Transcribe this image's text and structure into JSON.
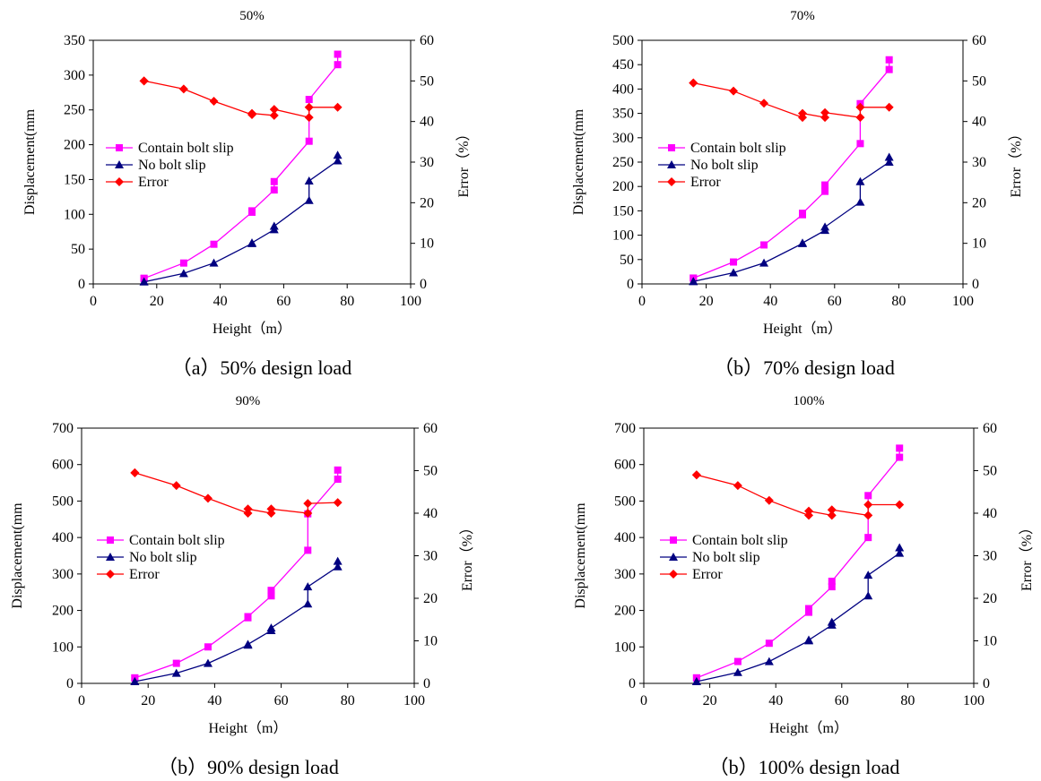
{
  "chart_data": [
    {
      "type": "line",
      "title": "50%",
      "caption": "（a）50% design load",
      "xlabel": "Height（m）",
      "ylabel": "Displacement(mm",
      "y2label": "Error（%）",
      "xlim": [
        0,
        100
      ],
      "xticks": [
        0,
        20,
        40,
        60,
        80,
        100
      ],
      "ylim": [
        0,
        350
      ],
      "yticks": [
        0,
        50,
        100,
        150,
        200,
        250,
        300,
        350
      ],
      "y2lim": [
        0,
        60
      ],
      "y2ticks": [
        0,
        10,
        20,
        30,
        40,
        50,
        60
      ],
      "legend": [
        "Contain bolt slip",
        "No bolt slip",
        "Error"
      ],
      "series": [
        {
          "name": "Contain bolt slip",
          "color": "#ff00ff",
          "marker": "square",
          "axis": "left",
          "x": [
            16,
            16,
            28.5,
            38,
            50,
            50,
            57,
            57,
            68,
            68,
            77,
            77
          ],
          "y": [
            8,
            8,
            30,
            57,
            103,
            105,
            135,
            147,
            205,
            265,
            315,
            330
          ]
        },
        {
          "name": "No bolt slip",
          "color": "#000080",
          "marker": "triangle",
          "axis": "left",
          "x": [
            16,
            16,
            28.5,
            38,
            50,
            50,
            57,
            57,
            68,
            68,
            77,
            77
          ],
          "y": [
            3,
            3,
            15,
            30,
            58,
            59,
            78,
            83,
            120,
            148,
            177,
            185
          ]
        },
        {
          "name": "Error",
          "color": "#ff0000",
          "marker": "diamond",
          "axis": "right",
          "x": [
            16,
            16,
            28.5,
            38,
            50,
            50,
            57,
            57,
            68,
            68,
            77
          ],
          "y": [
            50,
            50,
            48,
            45,
            41.7,
            42,
            41.5,
            43,
            41,
            43.5,
            43.5
          ]
        }
      ]
    },
    {
      "type": "line",
      "title": "70%",
      "caption": "（b）70% design load",
      "xlabel": "Height（m）",
      "ylabel": "Displacement(mm",
      "y2label": "Error（%）",
      "xlim": [
        0,
        100
      ],
      "xticks": [
        0,
        20,
        40,
        60,
        80,
        100
      ],
      "ylim": [
        0,
        500
      ],
      "yticks": [
        0,
        50,
        100,
        150,
        200,
        250,
        300,
        350,
        400,
        450,
        500
      ],
      "y2lim": [
        0,
        60
      ],
      "y2ticks": [
        0,
        10,
        20,
        30,
        40,
        50,
        60
      ],
      "legend": [
        "Contain bolt slip",
        "No bolt slip",
        "Error"
      ],
      "series": [
        {
          "name": "Contain bolt slip",
          "color": "#ff00ff",
          "marker": "square",
          "axis": "left",
          "x": [
            16,
            16,
            28.5,
            38,
            50,
            50,
            57,
            57,
            68,
            68,
            77,
            77
          ],
          "y": [
            12,
            12,
            45,
            80,
            142,
            145,
            190,
            203,
            288,
            370,
            440,
            460
          ]
        },
        {
          "name": "No bolt slip",
          "color": "#000080",
          "marker": "triangle",
          "axis": "left",
          "x": [
            16,
            16,
            28.5,
            38,
            50,
            50,
            57,
            57,
            68,
            68,
            77,
            77
          ],
          "y": [
            5,
            5,
            23,
            43,
            83,
            84,
            110,
            117,
            168,
            210,
            250,
            260
          ]
        },
        {
          "name": "Error",
          "color": "#ff0000",
          "marker": "diamond",
          "axis": "right",
          "x": [
            16,
            16,
            28.5,
            38,
            50,
            50,
            57,
            57,
            68,
            68,
            77
          ],
          "y": [
            49.5,
            49.5,
            47.5,
            44.5,
            41,
            42,
            41,
            42.2,
            41,
            43.5,
            43.5
          ]
        }
      ]
    },
    {
      "type": "line",
      "title": "90%",
      "caption": "（b）90% design load",
      "xlabel": "Height（m）",
      "ylabel": "Displacement(mm",
      "y2label": "Error（%）",
      "xlim": [
        0,
        100
      ],
      "xticks": [
        0,
        20,
        40,
        60,
        80,
        100
      ],
      "ylim": [
        0,
        700
      ],
      "yticks": [
        0,
        100,
        200,
        300,
        400,
        500,
        600,
        700
      ],
      "y2lim": [
        0,
        60
      ],
      "y2ticks": [
        0,
        10,
        20,
        30,
        40,
        50,
        60
      ],
      "legend": [
        "Contain bolt slip",
        "No bolt slip",
        "Error"
      ],
      "series": [
        {
          "name": "Contain bolt slip",
          "color": "#ff00ff",
          "marker": "square",
          "axis": "left",
          "x": [
            16,
            16,
            28.5,
            38,
            50,
            50,
            57,
            57,
            68,
            68,
            77,
            77
          ],
          "y": [
            15,
            15,
            55,
            100,
            180,
            183,
            240,
            255,
            365,
            465,
            560,
            585
          ]
        },
        {
          "name": "No bolt slip",
          "color": "#000080",
          "marker": "triangle",
          "axis": "left",
          "x": [
            16,
            16,
            28.5,
            38,
            50,
            50,
            57,
            57,
            68,
            68,
            77,
            77
          ],
          "y": [
            5,
            5,
            28,
            55,
            105,
            107,
            145,
            152,
            218,
            265,
            320,
            335
          ]
        },
        {
          "name": "Error",
          "color": "#ff0000",
          "marker": "diamond",
          "axis": "right",
          "x": [
            16,
            16,
            28.5,
            38,
            50,
            50,
            57,
            57,
            68,
            68,
            77
          ],
          "y": [
            49.5,
            49.5,
            46.5,
            43.5,
            40,
            41,
            40,
            41,
            40,
            42.3,
            42.5
          ]
        }
      ]
    },
    {
      "type": "line",
      "title": "100%",
      "caption": "（b）100% design load",
      "xlabel": "Height（m）",
      "ylabel": "Displacement(mm",
      "y2label": "Error（%）",
      "xlim": [
        0,
        100
      ],
      "xticks": [
        0,
        20,
        40,
        60,
        80,
        100
      ],
      "ylim": [
        0,
        700
      ],
      "yticks": [
        0,
        100,
        200,
        300,
        400,
        500,
        600,
        700
      ],
      "y2lim": [
        0,
        60
      ],
      "y2ticks": [
        0,
        10,
        20,
        30,
        40,
        50,
        60
      ],
      "legend": [
        "Contain bolt slip",
        "No bolt slip",
        "Error"
      ],
      "series": [
        {
          "name": "Contain bolt slip",
          "color": "#ff00ff",
          "marker": "square",
          "axis": "left",
          "x": [
            16,
            16,
            28.5,
            38,
            50,
            50,
            57,
            57,
            68,
            68,
            77.5,
            77.5
          ],
          "y": [
            15,
            15,
            60,
            110,
            195,
            205,
            265,
            280,
            400,
            515,
            620,
            645
          ]
        },
        {
          "name": "No bolt slip",
          "color": "#000080",
          "marker": "triangle",
          "axis": "left",
          "x": [
            16,
            16,
            28.5,
            38,
            50,
            50,
            57,
            57,
            68,
            68,
            77.5,
            77.5
          ],
          "y": [
            5,
            5,
            30,
            60,
            117,
            119,
            160,
            168,
            240,
            297,
            357,
            372
          ]
        },
        {
          "name": "Error",
          "color": "#ff0000",
          "marker": "diamond",
          "axis": "right",
          "x": [
            16,
            16,
            28.5,
            38,
            50,
            50,
            57,
            57,
            68,
            68,
            77.5
          ],
          "y": [
            49,
            49,
            46.5,
            43,
            39.5,
            40.5,
            39.5,
            40.8,
            39.5,
            42,
            42
          ]
        }
      ]
    }
  ]
}
